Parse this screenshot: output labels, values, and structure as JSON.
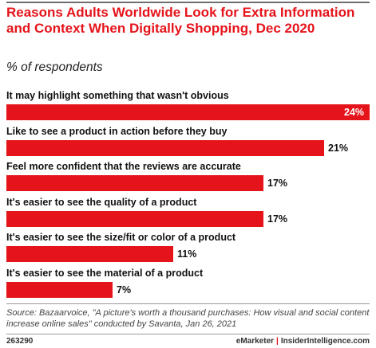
{
  "title": "Reasons Adults Worldwide Look for Extra Information and Context When Digitally Shopping, Dec 2020",
  "subtitle": "% of respondents",
  "source": "Source: Bazaarvoice, \"A picture's worth a thousand purchases: How visual and social content increase online sales\" conducted by Savanta, Jan 26, 2021",
  "footer": {
    "id": "263290",
    "brand_left": "eMarketer",
    "brand_sep": "|",
    "brand_right": "InsiderIntelligence.com"
  },
  "colors": {
    "bar": "#e5141b",
    "title": "#e5141b"
  },
  "chart_data": {
    "type": "bar",
    "orientation": "horizontal",
    "categories": [
      "It may highlight something that wasn't obvious",
      "Like to see a product in action before they buy",
      "Feel more confident that the reviews are accurate",
      "It's easier to see the quality of a product",
      "It's easier to see the size/fit or color of a product",
      "It's easier to see the material of a product"
    ],
    "values": [
      24,
      21,
      17,
      17,
      11,
      7
    ],
    "value_labels": [
      "24%",
      "21%",
      "17%",
      "17%",
      "11%",
      "7%"
    ],
    "xlim": [
      0,
      24
    ],
    "grid": false,
    "legend": "none"
  }
}
